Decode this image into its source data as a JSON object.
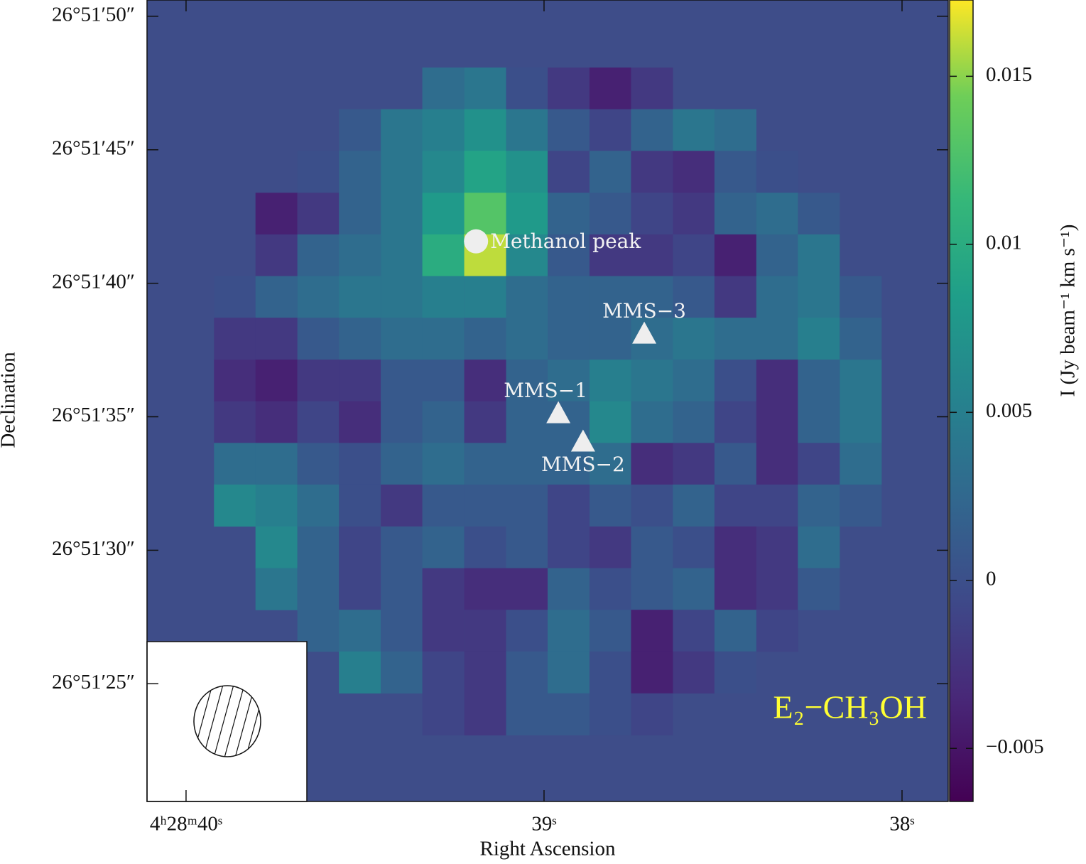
{
  "chart_data": {
    "type": "heatmap",
    "title": "E₂−CH₃OH",
    "x_label": "Right Ascension",
    "y_label": "Declination",
    "colorbar_label": "I (Jy beam⁻¹ km s⁻¹)",
    "colormap": "viridis",
    "background": "#3e4d89",
    "title_color": "#ffff33",
    "xlim": [
      40.109,
      37.871
    ],
    "ylim": [
      20.59,
      50.61
    ],
    "clim": [
      -0.00658,
      0.01727
    ],
    "xticks": [
      {
        "value": 40,
        "label": "4ʰ28ᵐ40ˢ"
      },
      {
        "value": 39,
        "label": "39ˢ"
      },
      {
        "value": 38,
        "label": "38ˢ"
      }
    ],
    "yticks": [
      {
        "value": 50,
        "label": "26°51′50″"
      },
      {
        "value": 45,
        "label": "26°51′45″"
      },
      {
        "value": 40,
        "label": "26°51′40″"
      },
      {
        "value": 35,
        "label": "26°51′35″"
      },
      {
        "value": 30,
        "label": "26°51′30″"
      },
      {
        "value": 25,
        "label": "26°51′25″"
      }
    ],
    "cticks": [
      0.015,
      0.01,
      0.005,
      0,
      {
        "value": -0.005,
        "label": "−0.005"
      }
    ],
    "x": [
      39.864,
      39.748,
      39.631,
      39.515,
      39.398,
      39.282,
      39.165,
      39.048,
      38.932,
      38.815,
      38.699,
      38.582,
      38.466,
      38.349,
      38.233,
      38.116
    ],
    "y": [
      47.3,
      45.74,
      44.18,
      42.61,
      41.05,
      39.49,
      37.93,
      36.36,
      34.8,
      33.24,
      31.68,
      30.11,
      28.55,
      26.99,
      25.43,
      23.86
    ],
    "values": [
      [
        null,
        null,
        null,
        null,
        null,
        0.003,
        0.004,
        0.0,
        -0.002,
        -0.004,
        -0.002,
        null,
        null,
        null,
        null,
        null
      ],
      [
        null,
        null,
        null,
        0.001,
        0.004,
        0.005,
        0.007,
        0.004,
        0.001,
        -0.001,
        0.002,
        0.004,
        0.003,
        null,
        null,
        null
      ],
      [
        null,
        null,
        0.0,
        0.002,
        0.004,
        0.006,
        0.009,
        0.007,
        -0.001,
        0.002,
        -0.002,
        -0.003,
        0.001,
        0.0,
        null,
        null
      ],
      [
        null,
        -0.004,
        -0.002,
        0.002,
        0.004,
        0.008,
        0.013,
        0.008,
        0.002,
        0.001,
        -0.001,
        -0.002,
        0.002,
        0.003,
        0.001,
        null
      ],
      [
        null,
        -0.002,
        0.002,
        0.003,
        0.004,
        0.01,
        0.016,
        0.006,
        0.001,
        -0.002,
        -0.002,
        -0.001,
        -0.004,
        0.002,
        0.004,
        null
      ],
      [
        0.0,
        0.002,
        0.003,
        0.004,
        0.004,
        0.005,
        0.005,
        0.003,
        0.002,
        0.002,
        0.002,
        0.001,
        -0.002,
        0.003,
        0.004,
        0.001
      ],
      [
        -0.002,
        -0.002,
        0.001,
        0.002,
        0.003,
        0.003,
        0.002,
        0.003,
        0.002,
        0.002,
        0.003,
        0.004,
        0.003,
        0.003,
        0.005,
        0.002
      ],
      [
        -0.003,
        -0.004,
        -0.002,
        -0.002,
        0.001,
        0.001,
        -0.003,
        0.002,
        0.003,
        0.005,
        0.004,
        0.003,
        0.0,
        -0.003,
        0.002,
        0.004
      ],
      [
        -0.002,
        -0.003,
        -0.001,
        -0.003,
        0.001,
        0.002,
        -0.002,
        0.002,
        0.002,
        0.006,
        0.003,
        0.002,
        -0.001,
        -0.003,
        0.002,
        0.004
      ],
      [
        0.003,
        0.003,
        0.001,
        0.0,
        0.002,
        0.003,
        0.002,
        0.002,
        0.002,
        0.003,
        -0.003,
        -0.002,
        0.001,
        -0.003,
        -0.001,
        0.003
      ],
      [
        0.006,
        0.005,
        0.003,
        0.0,
        -0.002,
        0.001,
        0.001,
        0.001,
        -0.001,
        0.001,
        0.0,
        0.002,
        -0.001,
        -0.001,
        0.002,
        0.001
      ],
      [
        null,
        0.006,
        0.002,
        -0.001,
        0.001,
        0.002,
        0.0,
        0.001,
        -0.001,
        -0.002,
        0.001,
        0.0,
        -0.003,
        -0.002,
        0.003,
        null
      ],
      [
        null,
        0.004,
        0.002,
        -0.001,
        0.001,
        -0.002,
        -0.003,
        -0.003,
        0.002,
        0.0,
        0.001,
        0.002,
        -0.003,
        -0.002,
        0.001,
        null
      ],
      [
        null,
        null,
        0.002,
        0.003,
        0.001,
        -0.002,
        -0.002,
        0.0,
        0.003,
        0.001,
        -0.004,
        -0.001,
        0.002,
        -0.001,
        null,
        null
      ],
      [
        null,
        null,
        null,
        0.005,
        0.002,
        -0.001,
        -0.002,
        0.001,
        0.003,
        0.0,
        -0.004,
        -0.002,
        0.0,
        null,
        null,
        null
      ],
      [
        null,
        null,
        null,
        null,
        null,
        -0.001,
        -0.002,
        0.001,
        0.001,
        0.0,
        -0.001,
        null,
        null,
        null,
        null,
        null
      ]
    ],
    "sources": [
      {
        "name": "Methanol peak",
        "marker": "circle",
        "x": 39.19,
        "y": 41.57
      },
      {
        "name": "MMS−3",
        "marker": "triangle",
        "x": 38.72,
        "y": 38.11
      },
      {
        "name": "MMS−1",
        "marker": "triangle",
        "x": 38.96,
        "y": 35.13
      },
      {
        "name": "MMS−2",
        "marker": "triangle",
        "x": 38.891,
        "y": 34.07
      }
    ]
  }
}
